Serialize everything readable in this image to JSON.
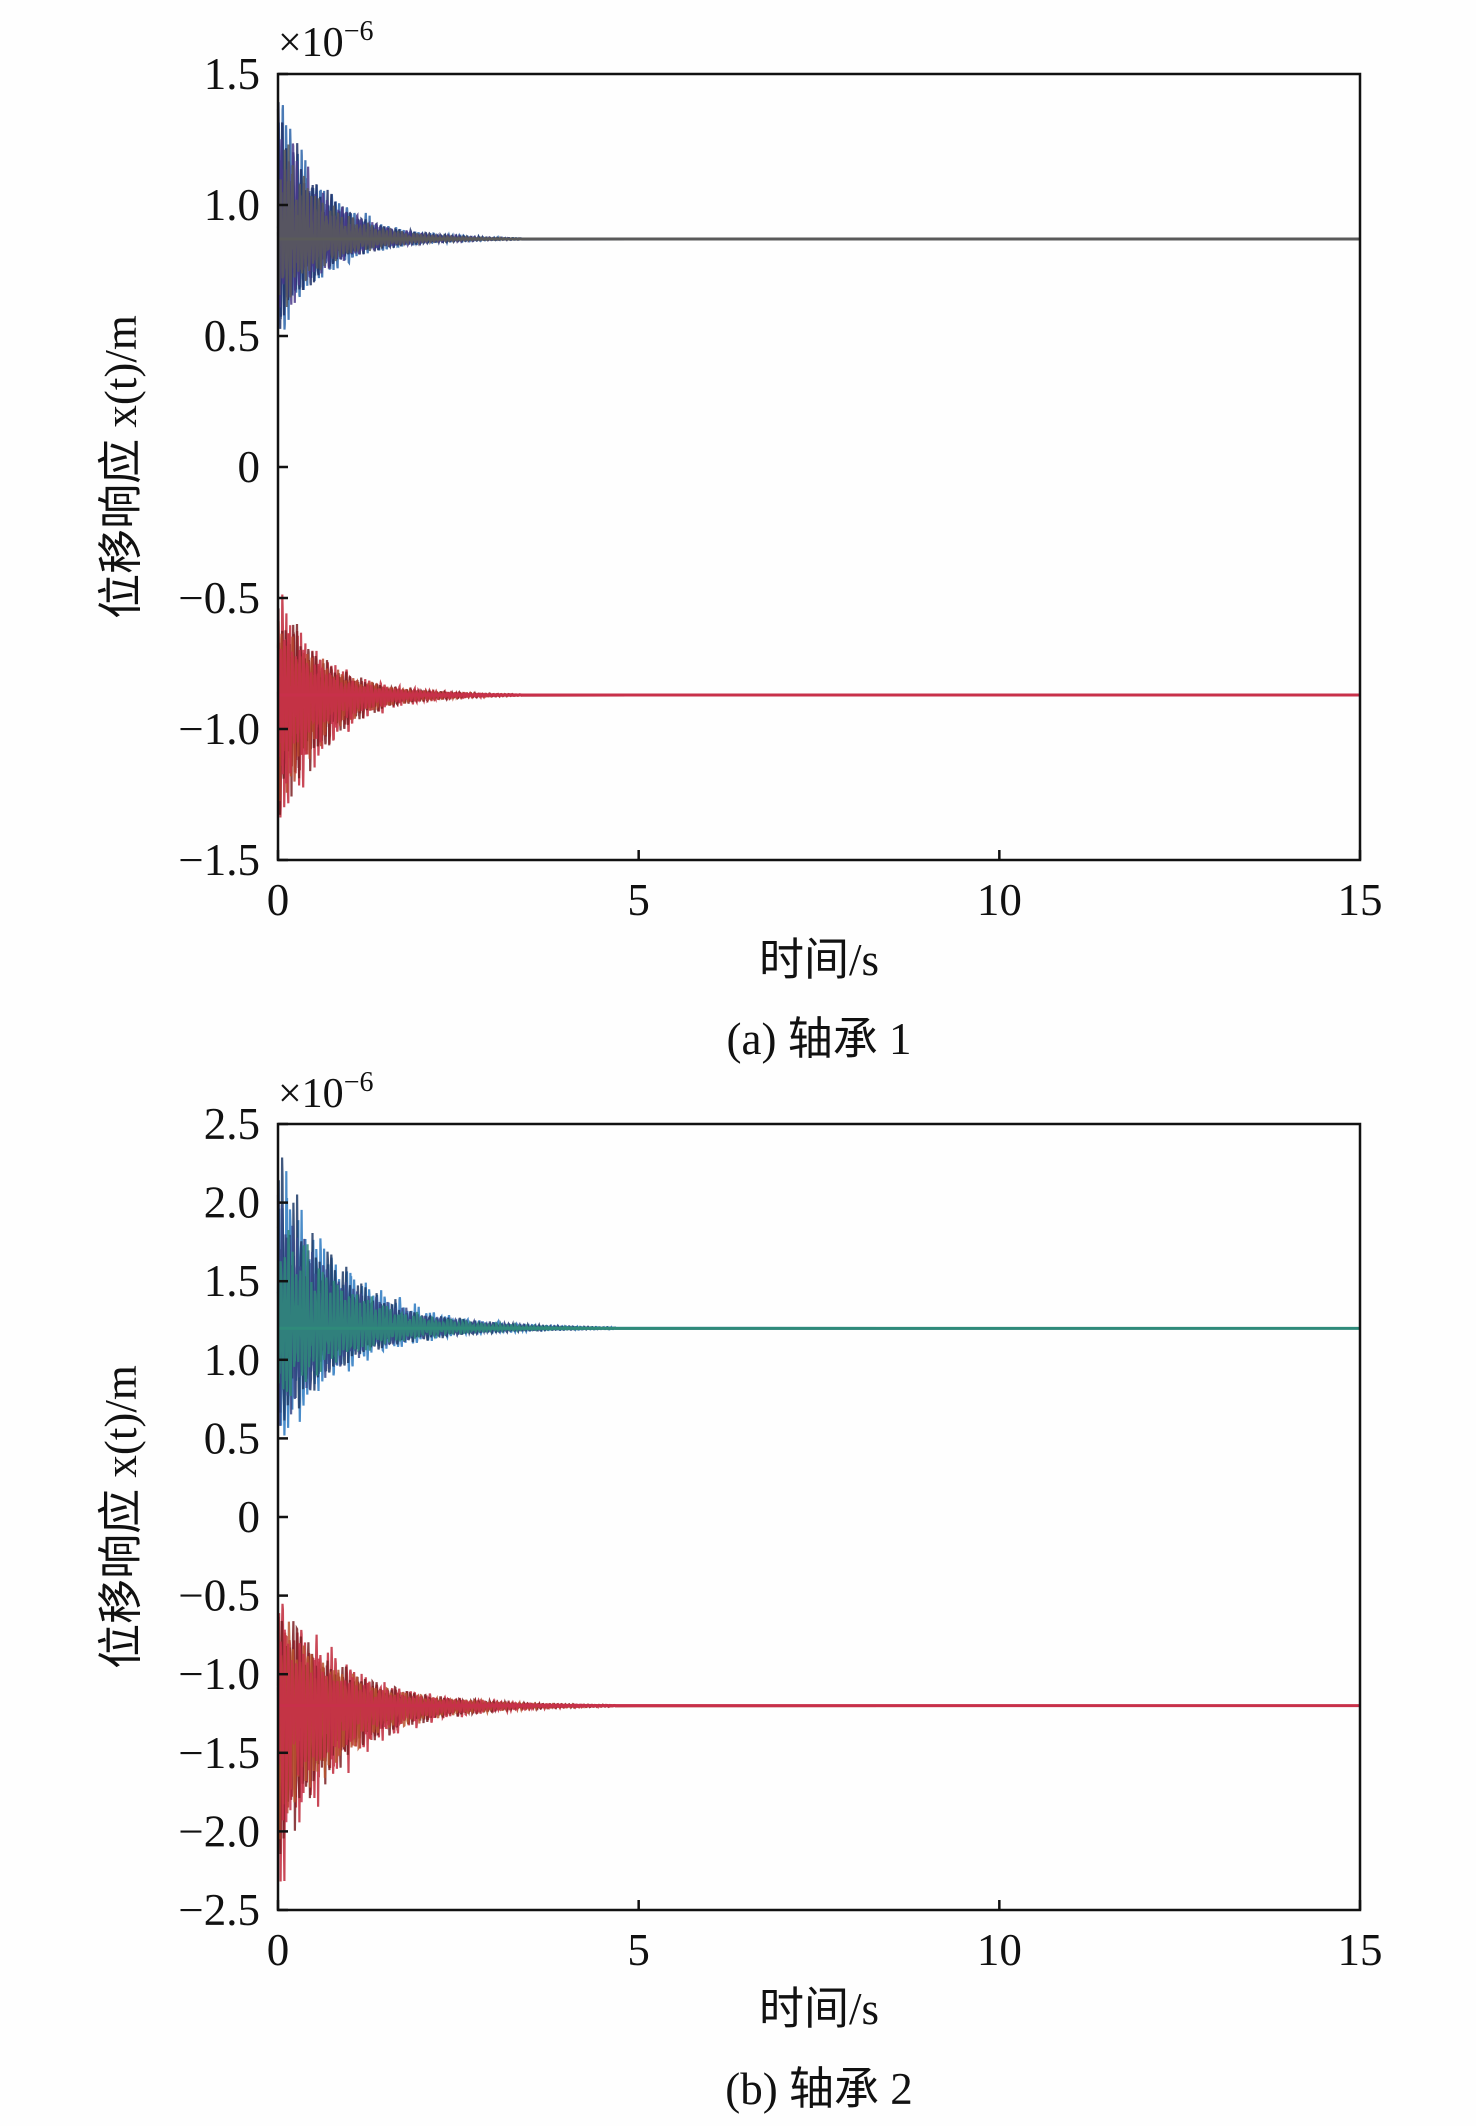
{
  "chart_data": [
    {
      "panel": "a",
      "type": "line",
      "caption": "(a) 轴承 1",
      "xlabel": "时间/s",
      "ylabel": "位移响应 x(t)/m",
      "y_multiplier": "×10",
      "y_multiplier_exp": "−6",
      "xlim": [
        0,
        15
      ],
      "ylim": [
        -1.5,
        1.5
      ],
      "xticks": [
        0,
        5,
        10,
        15
      ],
      "xtick_labels": [
        "0",
        "5",
        "10",
        "15"
      ],
      "yticks": [
        1.5,
        1.0,
        0.5,
        0,
        -0.5,
        -1.0,
        -1.5
      ],
      "ytick_labels": [
        "1.5",
        "1.0",
        "0.5",
        "0",
        "−0.5",
        "−1.0",
        "−1.5"
      ],
      "grid": false,
      "series": [
        {
          "steady": 0.87,
          "peak_max": 1.4,
          "peak_min": 0.5,
          "decay_time": 2.6,
          "colors": [
            "#2a63a8",
            "#1d2f66",
            "#4a3a8a",
            "#5a5a5a"
          ]
        },
        {
          "steady": -0.87,
          "peak_max": -0.5,
          "peak_min": -1.4,
          "decay_time": 2.6,
          "colors": [
            "#c0283a",
            "#7a1e22",
            "#b8462e",
            "#c8304a"
          ]
        }
      ]
    },
    {
      "panel": "b",
      "type": "line",
      "caption": "(b) 轴承 2",
      "xlabel": "时间/s",
      "ylabel": "位移响应 x(t)/m",
      "y_multiplier": "×10",
      "y_multiplier_exp": "−6",
      "xlim": [
        0,
        15
      ],
      "ylim": [
        -2.5,
        2.5
      ],
      "xticks": [
        0,
        5,
        10,
        15
      ],
      "xtick_labels": [
        "0",
        "5",
        "10",
        "15"
      ],
      "yticks": [
        2.5,
        2.0,
        1.5,
        1.0,
        0.5,
        0,
        -0.5,
        -1.0,
        -1.5,
        -2.0,
        -2.5
      ],
      "ytick_labels": [
        "2.5",
        "2.0",
        "1.5",
        "1.0",
        "0.5",
        "0",
        "−0.5",
        "−1.0",
        "−1.5",
        "−2.0",
        "−2.5"
      ],
      "grid": false,
      "series": [
        {
          "steady": 1.2,
          "peak_max": 2.25,
          "peak_min": 0.5,
          "decay_time": 3.6,
          "colors": [
            "#2a78c0",
            "#1d3a66",
            "#3a4a8a",
            "#2f8a7a"
          ]
        },
        {
          "steady": -1.2,
          "peak_max": -0.5,
          "peak_min": -2.25,
          "decay_time": 3.6,
          "colors": [
            "#c0283a",
            "#7a1e22",
            "#b8552e",
            "#c8304a"
          ]
        }
      ]
    }
  ]
}
